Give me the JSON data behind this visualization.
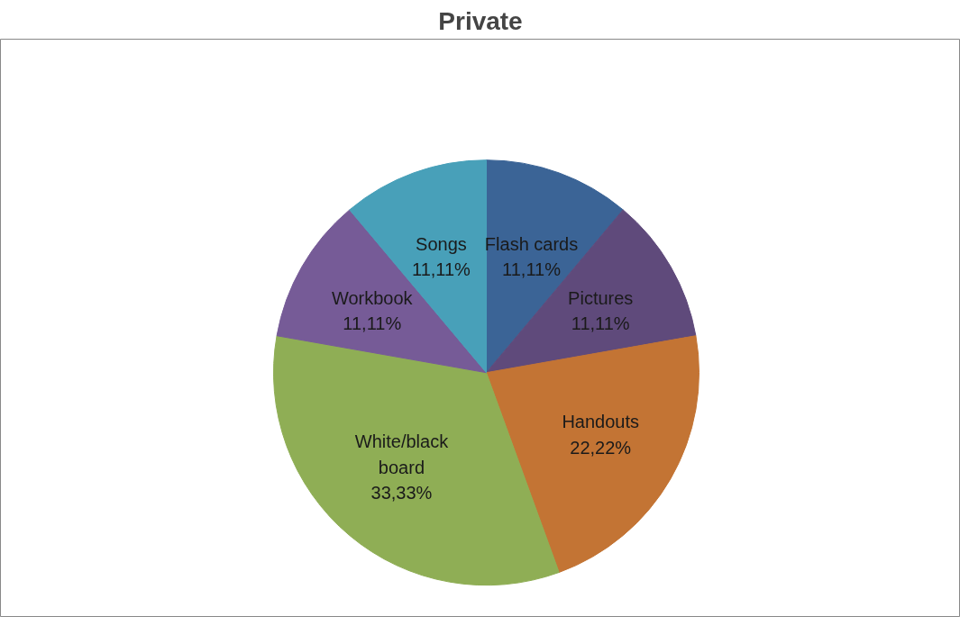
{
  "chart_data": {
    "type": "pie",
    "title": "Private",
    "categories": [
      "Flash cards",
      "Pictures",
      "Handouts",
      "White/black board",
      "Workbook",
      "Songs"
    ],
    "values": [
      11.11,
      11.11,
      22.22,
      33.33,
      11.11,
      11.11
    ],
    "value_labels": [
      "11,11%",
      "11,11%",
      "22,22%",
      "33,33%",
      "11,11%",
      "11,11%"
    ],
    "colors": [
      "#3b6496",
      "#5f4a7b",
      "#c37434",
      "#8fae55",
      "#765b97",
      "#48a0b9"
    ],
    "legend": false
  }
}
